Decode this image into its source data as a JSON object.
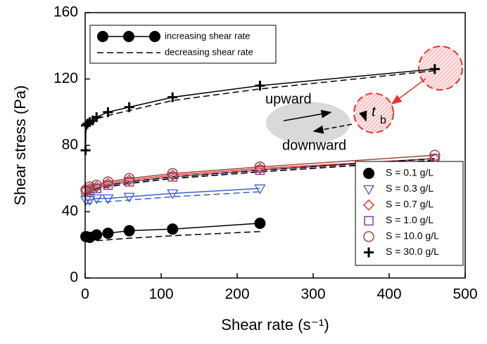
{
  "chart_data": {
    "type": "line",
    "x_label": "Shear rate (s⁻¹)",
    "y_label": "Shear stress (Pa)",
    "xlim": [
      0,
      500
    ],
    "xticks": [
      0,
      100,
      200,
      300,
      400,
      500
    ],
    "ylim": [
      0,
      160
    ],
    "yticks": [
      0,
      40,
      80,
      120,
      160
    ],
    "line_legend": [
      "increasing shear rate",
      "decreasing shear rate"
    ],
    "annotations": {
      "upward": "upward",
      "downward": "downward",
      "t": "t",
      "t_sub": "b"
    },
    "series": [
      {
        "name": "S = 0.1 g/L",
        "color": "#000000",
        "marker": "filled-circle",
        "x": [
          1,
          6,
          15,
          30,
          58,
          115,
          230
        ],
        "values": [
          25,
          24.5,
          26,
          27,
          28.5,
          29.5,
          33
        ],
        "decreasing_values": [
          null,
          null,
          22.5,
          23,
          24,
          25.5,
          28
        ]
      },
      {
        "name": "S = 0.3 g/L",
        "color": "#3a5fcd",
        "marker": "triangle-down",
        "x": [
          1,
          6,
          15,
          30,
          58,
          115,
          230
        ],
        "values": [
          47,
          47,
          48,
          48,
          49,
          51,
          54
        ],
        "decreasing_values": [
          45,
          45,
          46,
          46,
          47,
          49,
          52
        ]
      },
      {
        "name": "S = 0.7 g/L",
        "color": "#e8332a",
        "marker": "diamond",
        "x": [
          1,
          6,
          15,
          30,
          58,
          115,
          230,
          460
        ],
        "values": [
          53,
          54,
          55,
          57,
          59,
          62,
          66,
          72
        ],
        "decreasing_values": [
          50,
          52,
          53,
          55,
          57,
          60,
          64,
          71
        ]
      },
      {
        "name": "S = 1.0 g/L",
        "color": "#8a3d9e",
        "marker": "square",
        "x": [
          1,
          6,
          15,
          30,
          58,
          115,
          230,
          460
        ],
        "values": [
          52,
          53,
          54,
          56,
          58,
          61,
          65,
          72
        ],
        "decreasing_values": [
          50,
          51,
          53,
          55,
          57,
          60,
          64,
          71
        ]
      },
      {
        "name": "S = 10.0 g/L",
        "color": "#9c4a3a",
        "marker": "circle",
        "x": [
          1,
          6,
          15,
          30,
          58,
          115,
          230,
          460
        ],
        "values": [
          53,
          55,
          56,
          58,
          60,
          63,
          67,
          74
        ],
        "decreasing_values": [
          51,
          52,
          54,
          56,
          58,
          61,
          65,
          72
        ]
      },
      {
        "name": "S = 30.0 g/L",
        "color": "#000000",
        "marker": "plus",
        "x": [
          0.5,
          1,
          3,
          6,
          10,
          15,
          30,
          58,
          115,
          230,
          460
        ],
        "values": [
          77,
          92,
          93,
          94,
          95,
          97,
          100,
          103,
          109,
          116,
          126
        ],
        "decreasing_values": [
          76,
          91,
          92,
          93,
          94,
          96,
          98,
          101,
          107,
          114,
          125
        ]
      }
    ]
  }
}
